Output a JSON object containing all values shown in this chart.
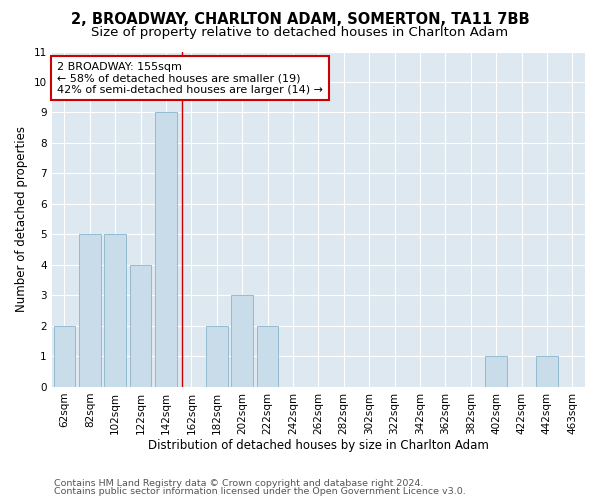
{
  "title": "2, BROADWAY, CHARLTON ADAM, SOMERTON, TA11 7BB",
  "subtitle": "Size of property relative to detached houses in Charlton Adam",
  "xlabel": "Distribution of detached houses by size in Charlton Adam",
  "ylabel": "Number of detached properties",
  "footnote1": "Contains HM Land Registry data © Crown copyright and database right 2024.",
  "footnote2": "Contains public sector information licensed under the Open Government Licence v3.0.",
  "annotation_line1": "2 BROADWAY: 155sqm",
  "annotation_line2": "← 58% of detached houses are smaller (19)",
  "annotation_line3": "42% of semi-detached houses are larger (14) →",
  "bar_labels": [
    "62sqm",
    "82sqm",
    "102sqm",
    "122sqm",
    "142sqm",
    "162sqm",
    "182sqm",
    "202sqm",
    "222sqm",
    "242sqm",
    "262sqm",
    "282sqm",
    "302sqm",
    "322sqm",
    "342sqm",
    "362sqm",
    "382sqm",
    "402sqm",
    "422sqm",
    "442sqm",
    "463sqm"
  ],
  "bar_values": [
    2,
    5,
    5,
    4,
    9,
    0,
    2,
    3,
    2,
    0,
    0,
    0,
    0,
    0,
    0,
    0,
    0,
    1,
    0,
    1,
    0
  ],
  "bar_color": "#c9dcea",
  "bar_edge_color": "#8ab4cc",
  "reference_line_x": 4.65,
  "reference_line_color": "#cc0000",
  "annotation_box_color": "#cc0000",
  "ylim": [
    0,
    11
  ],
  "yticks": [
    0,
    1,
    2,
    3,
    4,
    5,
    6,
    7,
    8,
    9,
    10,
    11
  ],
  "background_color": "#dde8f0",
  "grid_color": "#ffffff",
  "title_fontsize": 10.5,
  "subtitle_fontsize": 9.5,
  "annotation_fontsize": 8,
  "axis_fontsize": 8.5,
  "tick_fontsize": 7.5,
  "footnote_fontsize": 6.8
}
